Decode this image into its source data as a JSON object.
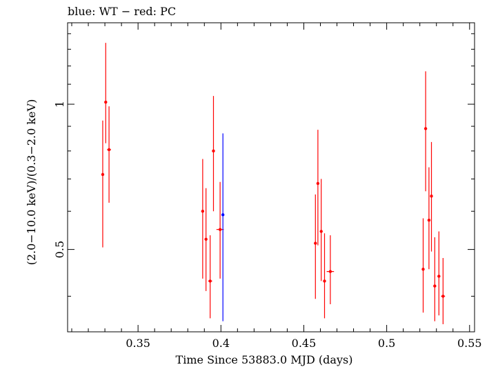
{
  "chart_data": {
    "type": "scatter",
    "title": "blue: WT − red: PC",
    "xlabel": "Time Since 53883.0 MJD (days)",
    "ylabel": "(2.0−10.0 keV)/(0.3−2.0 keV)",
    "xlim": [
      0.3075,
      0.553
    ],
    "ylim": [
      0.3375,
      1.475
    ],
    "yscale": "log",
    "xticks": [
      0.35,
      0.4,
      0.45,
      0.5,
      0.55
    ],
    "xtick_labels": [
      "0.35",
      "0.4",
      "0.45",
      "0.5",
      "0.55"
    ],
    "yticks": [
      0.5,
      1
    ],
    "ytick_labels": [
      "0.5",
      "1"
    ],
    "grid": false,
    "series": [
      {
        "color": "#ff0000",
        "points": [
          {
            "x": 0.3287,
            "xerr": 0.0006,
            "y": 0.715,
            "ylo": 0.505,
            "yhi": 0.925
          },
          {
            "x": 0.3305,
            "xerr": 0.0006,
            "y": 1.01,
            "ylo": 0.83,
            "yhi": 1.34
          },
          {
            "x": 0.3325,
            "xerr": 0.0012,
            "y": 0.805,
            "ylo": 0.625,
            "yhi": 0.99
          },
          {
            "x": 0.389,
            "xerr": 0.0008,
            "y": 0.6,
            "ylo": 0.435,
            "yhi": 0.77
          },
          {
            "x": 0.391,
            "xerr": 0.0008,
            "y": 0.525,
            "ylo": 0.41,
            "yhi": 0.67
          },
          {
            "x": 0.3935,
            "xerr": 0.0012,
            "y": 0.43,
            "ylo": 0.36,
            "yhi": 0.535
          },
          {
            "x": 0.3955,
            "xerr": 0.0008,
            "y": 0.8,
            "ylo": 0.6,
            "yhi": 1.04
          },
          {
            "x": 0.3995,
            "xerr": 0.0022,
            "y": 0.55,
            "ylo": 0.435,
            "yhi": 0.69
          },
          {
            "x": 0.457,
            "xerr": 0.0008,
            "y": 0.515,
            "ylo": 0.395,
            "yhi": 0.65
          },
          {
            "x": 0.4585,
            "xerr": 0.0008,
            "y": 0.685,
            "ylo": 0.51,
            "yhi": 0.885
          },
          {
            "x": 0.4605,
            "xerr": 0.0008,
            "y": 0.545,
            "ylo": 0.43,
            "yhi": 0.7
          },
          {
            "x": 0.4625,
            "xerr": 0.0008,
            "y": 0.43,
            "ylo": 0.36,
            "yhi": 0.54
          },
          {
            "x": 0.466,
            "xerr": 0.0022,
            "y": 0.45,
            "ylo": 0.385,
            "yhi": 0.535
          },
          {
            "x": 0.522,
            "xerr": 0.0008,
            "y": 0.455,
            "ylo": 0.37,
            "yhi": 0.58
          },
          {
            "x": 0.5235,
            "xerr": 0.0008,
            "y": 0.89,
            "ylo": 0.66,
            "yhi": 1.17
          },
          {
            "x": 0.5255,
            "xerr": 0.0008,
            "y": 0.575,
            "ylo": 0.455,
            "yhi": 0.74
          },
          {
            "x": 0.527,
            "xerr": 0.0008,
            "y": 0.645,
            "ylo": 0.495,
            "yhi": 0.835
          },
          {
            "x": 0.529,
            "xerr": 0.0008,
            "y": 0.42,
            "ylo": 0.355,
            "yhi": 0.53
          },
          {
            "x": 0.5315,
            "xerr": 0.0008,
            "y": 0.44,
            "ylo": 0.365,
            "yhi": 0.545
          },
          {
            "x": 0.534,
            "xerr": 0.0012,
            "y": 0.4,
            "ylo": 0.35,
            "yhi": 0.48
          }
        ]
      },
      {
        "color": "#0000ff",
        "points": [
          {
            "x": 0.4012,
            "xerr": 0.0002,
            "y": 0.59,
            "ylo": 0.355,
            "yhi": 0.87
          }
        ]
      }
    ]
  }
}
